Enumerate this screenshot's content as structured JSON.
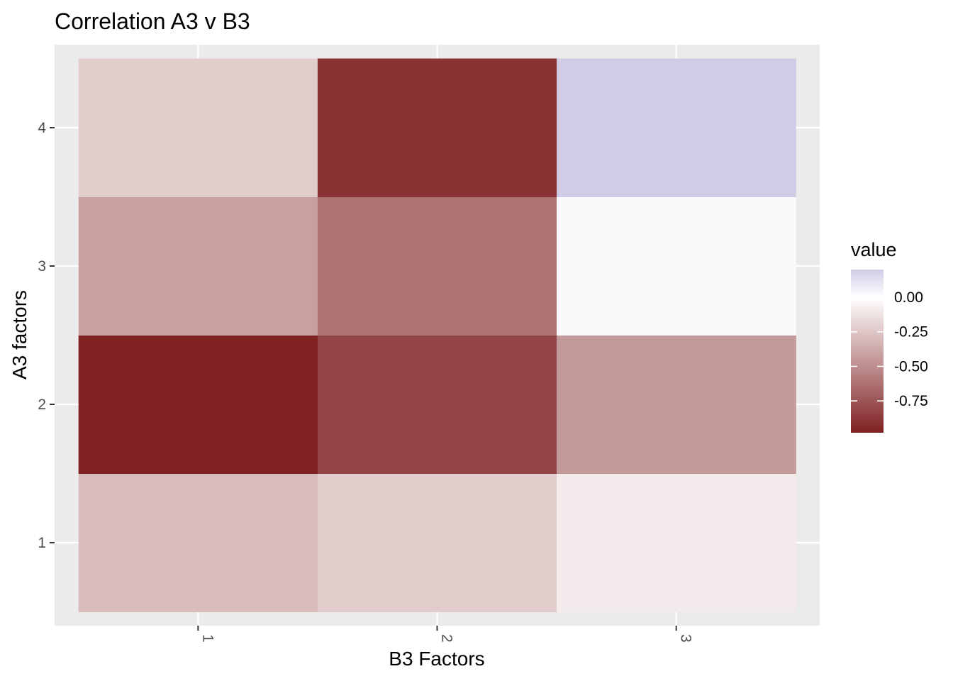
{
  "chart_data": {
    "type": "heatmap",
    "title": "Correlation A3 v B3",
    "xlabel": "B3 Factors",
    "ylabel": "A3 factors",
    "x_categories": [
      "1",
      "2",
      "3"
    ],
    "y_categories": [
      "1",
      "2",
      "3",
      "4"
    ],
    "values": [
      [
        -0.3,
        -0.22,
        -0.09
      ],
      [
        -0.98,
        -0.82,
        -0.45
      ],
      [
        -0.42,
        -0.62,
        0.02
      ],
      [
        -0.22,
        -0.9,
        0.2
      ]
    ],
    "legend": {
      "title": "value",
      "range": [
        -0.98,
        0.2
      ],
      "ticks": [
        0.0,
        -0.25,
        -0.5,
        -0.75
      ],
      "tick_labels": [
        "0.00",
        "-0.25",
        "-0.50",
        "-0.75"
      ],
      "low_color": "#7f2122",
      "mid_color": "#ffffff",
      "high_color": "#d1cbe6"
    },
    "panel_background": "#ebebeb",
    "grid": true
  }
}
